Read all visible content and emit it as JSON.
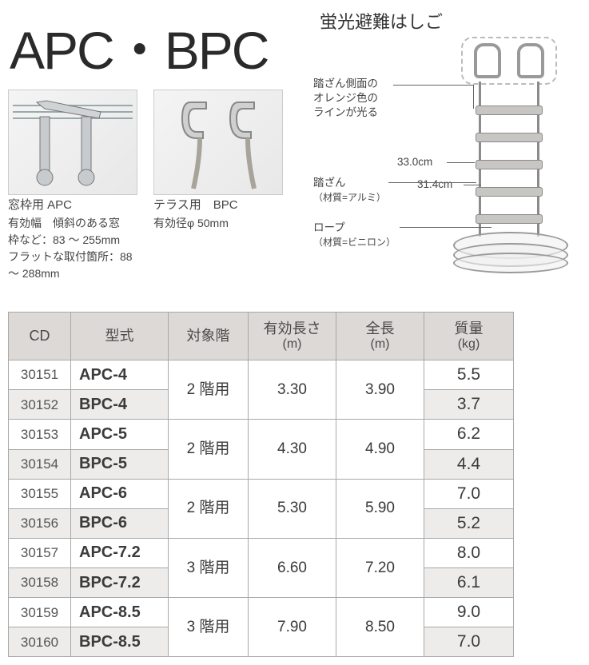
{
  "title": "APC・BPC",
  "right_title": "蛍光避難はしご",
  "apc": {
    "heading": "窓枠用 APC",
    "line1": "有効幅　傾斜のある窓",
    "line2": "枠など：83 ～ 255mm",
    "line3": "フラットな取付箇所：88",
    "line4": "～ 288mm"
  },
  "bpc": {
    "heading": "テラス用　BPC",
    "line1": "有効径φ 50mm"
  },
  "annotations": {
    "side_line1": "踏ざん側面の",
    "side_line2": "オレンジ色の",
    "side_line3": "ラインが光る",
    "dim33": "33.0cm",
    "dim31": "31.4cm",
    "rung_label": "踏ざん",
    "rung_mat": "（材質=アルミ）",
    "rope_label": "ロープ",
    "rope_mat": "（材質=ビニロン）"
  },
  "headers": {
    "cd": "CD",
    "model": "型式",
    "floor": "対象階",
    "len": "有効長さ",
    "len_unit": "(m)",
    "total": "全長",
    "total_unit": "(m)",
    "mass": "質量",
    "mass_unit": "(kg)"
  },
  "groups": [
    {
      "floor": "2 階用",
      "len": "3.30",
      "total": "3.90",
      "rows": [
        {
          "cd": "30151",
          "model": "APC-4",
          "mass": "5.5",
          "alt": false
        },
        {
          "cd": "30152",
          "model": "BPC-4",
          "mass": "3.7",
          "alt": true
        }
      ]
    },
    {
      "floor": "2 階用",
      "len": "4.30",
      "total": "4.90",
      "rows": [
        {
          "cd": "30153",
          "model": "APC-5",
          "mass": "6.2",
          "alt": false
        },
        {
          "cd": "30154",
          "model": "BPC-5",
          "mass": "4.4",
          "alt": true
        }
      ]
    },
    {
      "floor": "2 階用",
      "len": "5.30",
      "total": "5.90",
      "rows": [
        {
          "cd": "30155",
          "model": "APC-6",
          "mass": "7.0",
          "alt": false
        },
        {
          "cd": "30156",
          "model": "BPC-6",
          "mass": "5.2",
          "alt": true
        }
      ]
    },
    {
      "floor": "3 階用",
      "len": "6.60",
      "total": "7.20",
      "rows": [
        {
          "cd": "30157",
          "model": "APC-7.2",
          "mass": "8.0",
          "alt": false
        },
        {
          "cd": "30158",
          "model": "BPC-7.2",
          "mass": "6.1",
          "alt": true
        }
      ]
    },
    {
      "floor": "3 階用",
      "len": "7.90",
      "total": "8.50",
      "rows": [
        {
          "cd": "30159",
          "model": "APC-8.5",
          "mass": "9.0",
          "alt": false
        },
        {
          "cd": "30160",
          "model": "BPC-8.5",
          "mass": "7.0",
          "alt": true
        }
      ]
    }
  ]
}
